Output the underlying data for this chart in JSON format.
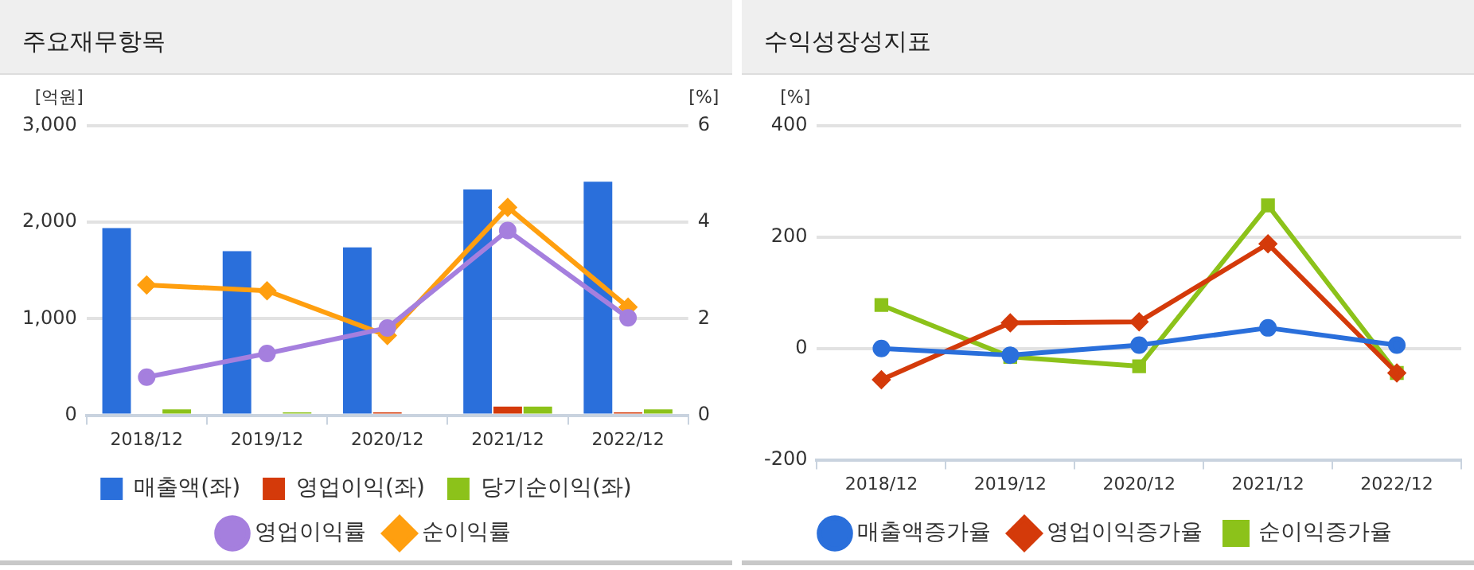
{
  "chart_data": [
    {
      "type": "bar",
      "title": "주요재무항목",
      "ylabel": "[억원]",
      "y2label": "[%]",
      "categories": [
        "2018/12",
        "2019/12",
        "2020/12",
        "2021/12",
        "2022/12"
      ],
      "series": [
        {
          "name": "매출액(좌)",
          "color": "#2a6fdb",
          "values": [
            1940,
            1700,
            1740,
            2340,
            2420
          ]
        },
        {
          "name": "영업이익(좌)",
          "color": "#d43a0a",
          "values": [
            0,
            0,
            30,
            90,
            30
          ]
        },
        {
          "name": "당기순이익(좌)",
          "color": "#8cc21a",
          "values": [
            60,
            30,
            0,
            90,
            60
          ]
        },
        {
          "name": "영업이익률",
          "type": "line",
          "axis": "y2",
          "marker": "circle",
          "color": "#a57fde",
          "values": [
            0.79,
            1.28,
            1.81,
            3.83,
            2.02
          ]
        },
        {
          "name": "순이익률",
          "type": "line",
          "axis": "y2",
          "marker": "diamond",
          "color": "#ff9f0f",
          "values": [
            2.7,
            2.58,
            1.65,
            4.31,
            2.24
          ]
        }
      ],
      "ylim": [
        0,
        3000
      ],
      "yticks": [
        0,
        {
          "value": 1000,
          "label": "1,000"
        },
        {
          "value": 2000,
          "label": "2,000"
        },
        {
          "value": 3000,
          "label": "3,000"
        }
      ],
      "y2lim": [
        0,
        6
      ],
      "y2ticks": [
        0,
        2,
        4,
        6
      ],
      "grid": "y",
      "legend": "bottom"
    },
    {
      "type": "line",
      "title": "수익성장성지표",
      "ylabel": "[%]",
      "categories": [
        "2018/12",
        "2019/12",
        "2020/12",
        "2021/12",
        "2022/12"
      ],
      "series": [
        {
          "name": "매출액증가율",
          "marker": "circle",
          "color": "#2a6fdb",
          "values": [
            0,
            -12,
            6,
            37,
            6
          ]
        },
        {
          "name": "영업이익증가율",
          "marker": "diamond",
          "color": "#d43a0a",
          "values": [
            -56,
            46,
            48,
            188,
            -44
          ]
        },
        {
          "name": "순이익증가율",
          "marker": "square",
          "color": "#8cc21a",
          "values": [
            78,
            -15,
            -32,
            257,
            -44
          ]
        }
      ],
      "ylim": [
        -200,
        400
      ],
      "yticks": [
        -200,
        0,
        200,
        400
      ],
      "grid": "y",
      "legend": "bottom"
    }
  ]
}
